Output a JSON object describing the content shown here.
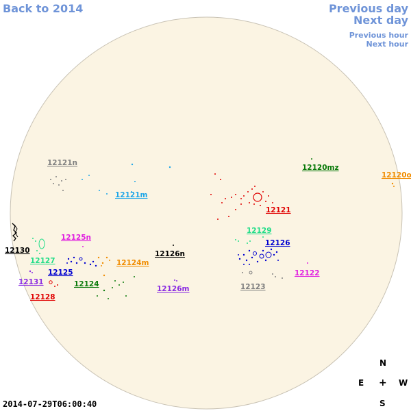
{
  "nav": {
    "back": "Back to 2014",
    "previous_day": "Previous day",
    "next_day": "Next day",
    "previous_hour": "Previous hour",
    "next_hour": "Next hour"
  },
  "timestamp": "2014-07-29T06:00:40",
  "compass": {
    "north": "N",
    "south": "S",
    "east": "E",
    "west": "W",
    "center": "+"
  },
  "colors": {
    "disk_fill": "#fbf4e3",
    "disk_stroke": "#c8c2b4",
    "nav_link": "#6f94d8"
  },
  "regions": [
    {
      "id": "12121n",
      "label": "12121n",
      "color": "#808080"
    },
    {
      "id": "12121m",
      "label": "12121m",
      "color": "#1ea6e8"
    },
    {
      "id": "12120mz",
      "label": "12120mz",
      "color": "#0a7a0a"
    },
    {
      "id": "12120o",
      "label": "12120o",
      "color": "#f08c00"
    },
    {
      "id": "12121",
      "label": "12121",
      "color": "#e00000"
    },
    {
      "id": "12129",
      "label": "12129",
      "color": "#22dd88"
    },
    {
      "id": "12126",
      "label": "12126",
      "color": "#0000d0"
    },
    {
      "id": "12125n",
      "label": "12125n",
      "color": "#e020e0"
    },
    {
      "id": "12130",
      "label": "12130",
      "color": "#000000"
    },
    {
      "id": "12127",
      "label": "12127",
      "color": "#22dd88"
    },
    {
      "id": "12124m",
      "label": "12124m",
      "color": "#f08c00"
    },
    {
      "id": "12126n",
      "label": "12126n",
      "color": "#000000"
    },
    {
      "id": "12125",
      "label": "12125",
      "color": "#0000d0"
    },
    {
      "id": "12131",
      "label": "12131",
      "color": "#8a2be2"
    },
    {
      "id": "12124",
      "label": "12124",
      "color": "#0a7a0a"
    },
    {
      "id": "12122",
      "label": "12122",
      "color": "#e020e0"
    },
    {
      "id": "12128",
      "label": "12128",
      "color": "#e00000"
    },
    {
      "id": "12126m",
      "label": "12126m",
      "color": "#8a2be2"
    },
    {
      "id": "12123",
      "label": "12123",
      "color": "#808080"
    }
  ]
}
